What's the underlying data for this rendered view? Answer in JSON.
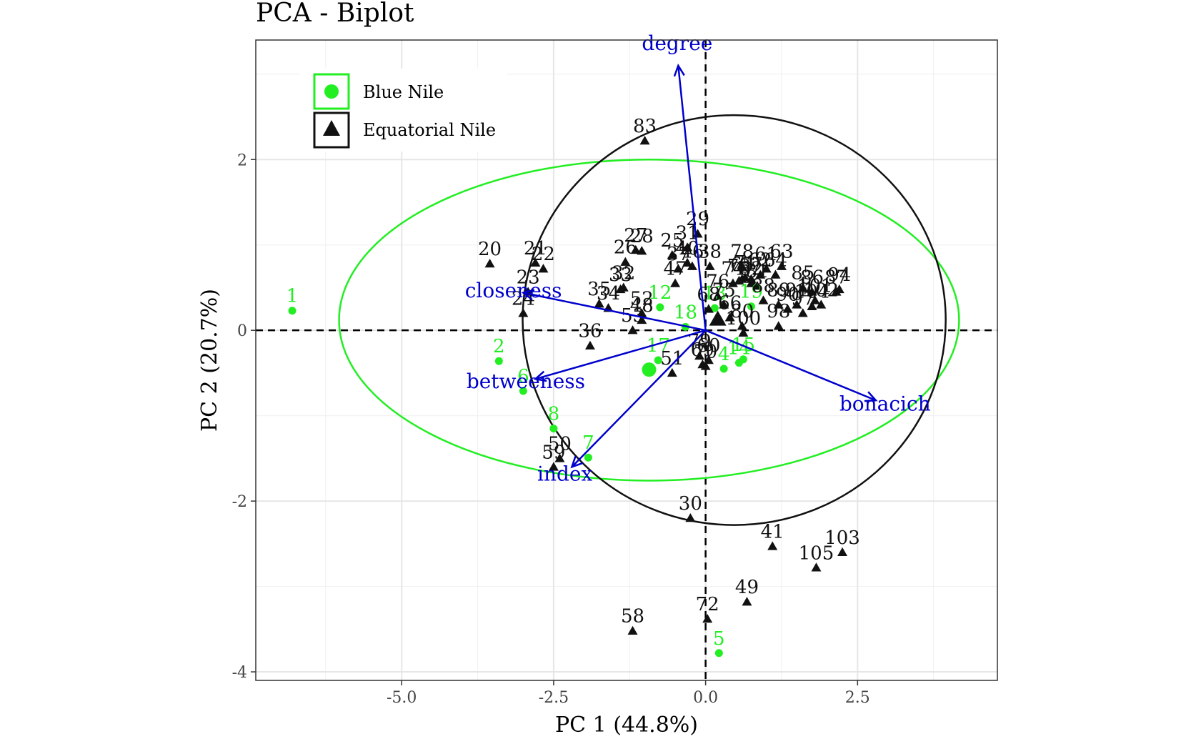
{
  "chart_data": {
    "type": "scatter",
    "title": "PCA - Biplot",
    "xlabel": "PC 1 (44.8%)",
    "ylabel": "PC 2 (20.7%)",
    "xlim": [
      -7.4,
      4.8
    ],
    "ylim": [
      -4.1,
      3.4
    ],
    "xticks": [
      -5.0,
      -2.5,
      0.0,
      2.5
    ],
    "xtick_labels": [
      "-5.0",
      "-2.5",
      "0.0",
      "2.5"
    ],
    "yticks": [
      -4,
      -2,
      0,
      2
    ],
    "ytick_labels": [
      "-4",
      "-2",
      "0",
      "2"
    ],
    "grid": true,
    "legend_position": "top-left",
    "colors": {
      "blue_nile": "#22ee22",
      "equatorial_nile": "#111111",
      "arrows": "#0000cc"
    },
    "series": [
      {
        "name": "Blue Nile",
        "marker": "circle",
        "centroid": [
          -0.93,
          -0.46
        ],
        "ellipse": {
          "center": [
            -0.93,
            0.12
          ],
          "rx": 5.1,
          "ry": 1.88
        },
        "points": [
          {
            "label": "1",
            "x": -6.8,
            "y": 0.23
          },
          {
            "label": "2",
            "x": -3.4,
            "y": -0.36
          },
          {
            "label": "6",
            "x": -3.0,
            "y": -0.71
          },
          {
            "label": "8",
            "x": -2.5,
            "y": -1.15
          },
          {
            "label": "7",
            "x": -1.93,
            "y": -1.49
          },
          {
            "label": "12",
            "x": -0.75,
            "y": 0.27
          },
          {
            "label": "18",
            "x": -0.33,
            "y": 0.04
          },
          {
            "label": "17",
            "x": -0.78,
            "y": -0.35
          },
          {
            "label": "13",
            "x": 0.15,
            "y": 0.26
          },
          {
            "label": "4",
            "x": 0.3,
            "y": -0.45
          },
          {
            "label": "14",
            "x": 0.55,
            "y": -0.38
          },
          {
            "label": "15",
            "x": 0.62,
            "y": -0.34
          },
          {
            "label": "19",
            "x": 0.75,
            "y": 0.28
          },
          {
            "label": "5",
            "x": 0.22,
            "y": -3.78
          }
        ]
      },
      {
        "name": "Equatorial Nile",
        "marker": "triangle",
        "centroid": [
          0.2,
          0.13
        ],
        "ellipse": {
          "center": [
            0.47,
            0.12
          ],
          "rx": 3.48,
          "ry": 2.4
        },
        "points": [
          {
            "label": "83",
            "x": -1.0,
            "y": 2.22
          },
          {
            "label": "20",
            "x": -3.55,
            "y": 0.78
          },
          {
            "label": "21",
            "x": -2.8,
            "y": 0.79
          },
          {
            "label": "22",
            "x": -2.67,
            "y": 0.72
          },
          {
            "label": "23",
            "x": -2.92,
            "y": 0.45
          },
          {
            "label": "24",
            "x": -3.0,
            "y": 0.2
          },
          {
            "label": "26",
            "x": -1.32,
            "y": 0.8
          },
          {
            "label": "27",
            "x": -1.15,
            "y": 0.94
          },
          {
            "label": "28",
            "x": -1.05,
            "y": 0.93
          },
          {
            "label": "25",
            "x": -0.55,
            "y": 0.88
          },
          {
            "label": "29",
            "x": -0.13,
            "y": 1.13
          },
          {
            "label": "31",
            "x": -0.3,
            "y": 0.97
          },
          {
            "label": "32",
            "x": -1.35,
            "y": 0.5
          },
          {
            "label": "33",
            "x": -1.4,
            "y": 0.48
          },
          {
            "label": "34",
            "x": -1.6,
            "y": 0.26
          },
          {
            "label": "35",
            "x": -1.75,
            "y": 0.31
          },
          {
            "label": "36",
            "x": -1.9,
            "y": -0.18
          },
          {
            "label": "37",
            "x": -0.45,
            "y": 0.72
          },
          {
            "label": "38",
            "x": 0.07,
            "y": 0.75
          },
          {
            "label": "40",
            "x": -0.3,
            "y": 0.79
          },
          {
            "label": "41",
            "x": 1.1,
            "y": -2.53
          },
          {
            "label": "46",
            "x": -0.22,
            "y": 0.75
          },
          {
            "label": "47",
            "x": -0.5,
            "y": 0.55
          },
          {
            "label": "48",
            "x": -1.05,
            "y": 0.12
          },
          {
            "label": "49",
            "x": 0.68,
            "y": -3.18
          },
          {
            "label": "50",
            "x": -2.4,
            "y": -1.5
          },
          {
            "label": "51",
            "x": -0.55,
            "y": -0.5
          },
          {
            "label": "52",
            "x": -1.05,
            "y": 0.2
          },
          {
            "label": "53",
            "x": -1.2,
            "y": 0.0
          },
          {
            "label": "58",
            "x": -1.2,
            "y": -3.52
          },
          {
            "label": "59",
            "x": -2.5,
            "y": -1.6
          },
          {
            "label": "60",
            "x": 0.05,
            "y": -0.35
          },
          {
            "label": "61",
            "x": 1.0,
            "y": 0.72
          },
          {
            "label": "62",
            "x": 0.9,
            "y": 0.65
          },
          {
            "label": "63",
            "x": 1.25,
            "y": 0.75
          },
          {
            "label": "64",
            "x": 1.15,
            "y": 0.65
          },
          {
            "label": "65",
            "x": 0.6,
            "y": 0.6
          },
          {
            "label": "66",
            "x": 0.4,
            "y": 0.15
          },
          {
            "label": "67",
            "x": 0.75,
            "y": 0.6
          },
          {
            "label": "68",
            "x": 0.05,
            "y": 0.25
          },
          {
            "label": "69",
            "x": -0.05,
            "y": -0.4
          },
          {
            "label": "70",
            "x": 0.0,
            "y": -0.42
          },
          {
            "label": "71",
            "x": 0.65,
            "y": 0.62
          },
          {
            "label": "72",
            "x": 0.03,
            "y": -3.38
          },
          {
            "label": "73",
            "x": 0.55,
            "y": 0.58
          },
          {
            "label": "74",
            "x": 0.45,
            "y": 0.55
          },
          {
            "label": "75",
            "x": 0.3,
            "y": 0.3
          },
          {
            "label": "76",
            "x": 0.2,
            "y": 0.4
          },
          {
            "label": "78",
            "x": 0.6,
            "y": 0.75
          },
          {
            "label": "79",
            "x": -0.1,
            "y": -0.3
          },
          {
            "label": "80",
            "x": 0.6,
            "y": 0.05
          },
          {
            "label": "81",
            "x": 0.85,
            "y": 0.52
          },
          {
            "label": "82",
            "x": 0.75,
            "y": 0.55
          },
          {
            "label": "85",
            "x": 1.6,
            "y": 0.5
          },
          {
            "label": "86",
            "x": 1.75,
            "y": 0.45
          },
          {
            "label": "87",
            "x": 2.15,
            "y": 0.45
          },
          {
            "label": "88",
            "x": 0.95,
            "y": 0.35
          },
          {
            "label": "89",
            "x": 1.2,
            "y": 0.3
          },
          {
            "label": "90",
            "x": 1.35,
            "y": 0.25
          },
          {
            "label": "91",
            "x": 1.5,
            "y": 0.3
          },
          {
            "label": "94",
            "x": 2.2,
            "y": 0.48
          },
          {
            "label": "97",
            "x": 1.6,
            "y": 0.2
          },
          {
            "label": "98",
            "x": 1.2,
            "y": 0.05
          },
          {
            "label": "100",
            "x": 0.62,
            "y": -0.03
          },
          {
            "label": "101",
            "x": 1.8,
            "y": 0.35
          },
          {
            "label": "102",
            "x": 1.9,
            "y": 0.3
          },
          {
            "label": "103",
            "x": 2.25,
            "y": -2.6
          },
          {
            "label": "104",
            "x": 1.75,
            "y": 0.28
          },
          {
            "label": "105",
            "x": 1.82,
            "y": -2.78
          },
          {
            "label": "30",
            "x": -0.25,
            "y": -2.2
          }
        ]
      }
    ],
    "variables": [
      {
        "name": "degree",
        "x": -0.45,
        "y": 3.1
      },
      {
        "name": "closeness",
        "x": -3.0,
        "y": 0.44
      },
      {
        "name": "betweeness",
        "x": -2.8,
        "y": -0.57
      },
      {
        "name": "index",
        "x": -2.2,
        "y": -1.6
      },
      {
        "name": "bonacich",
        "x": 2.8,
        "y": -0.82
      }
    ]
  }
}
